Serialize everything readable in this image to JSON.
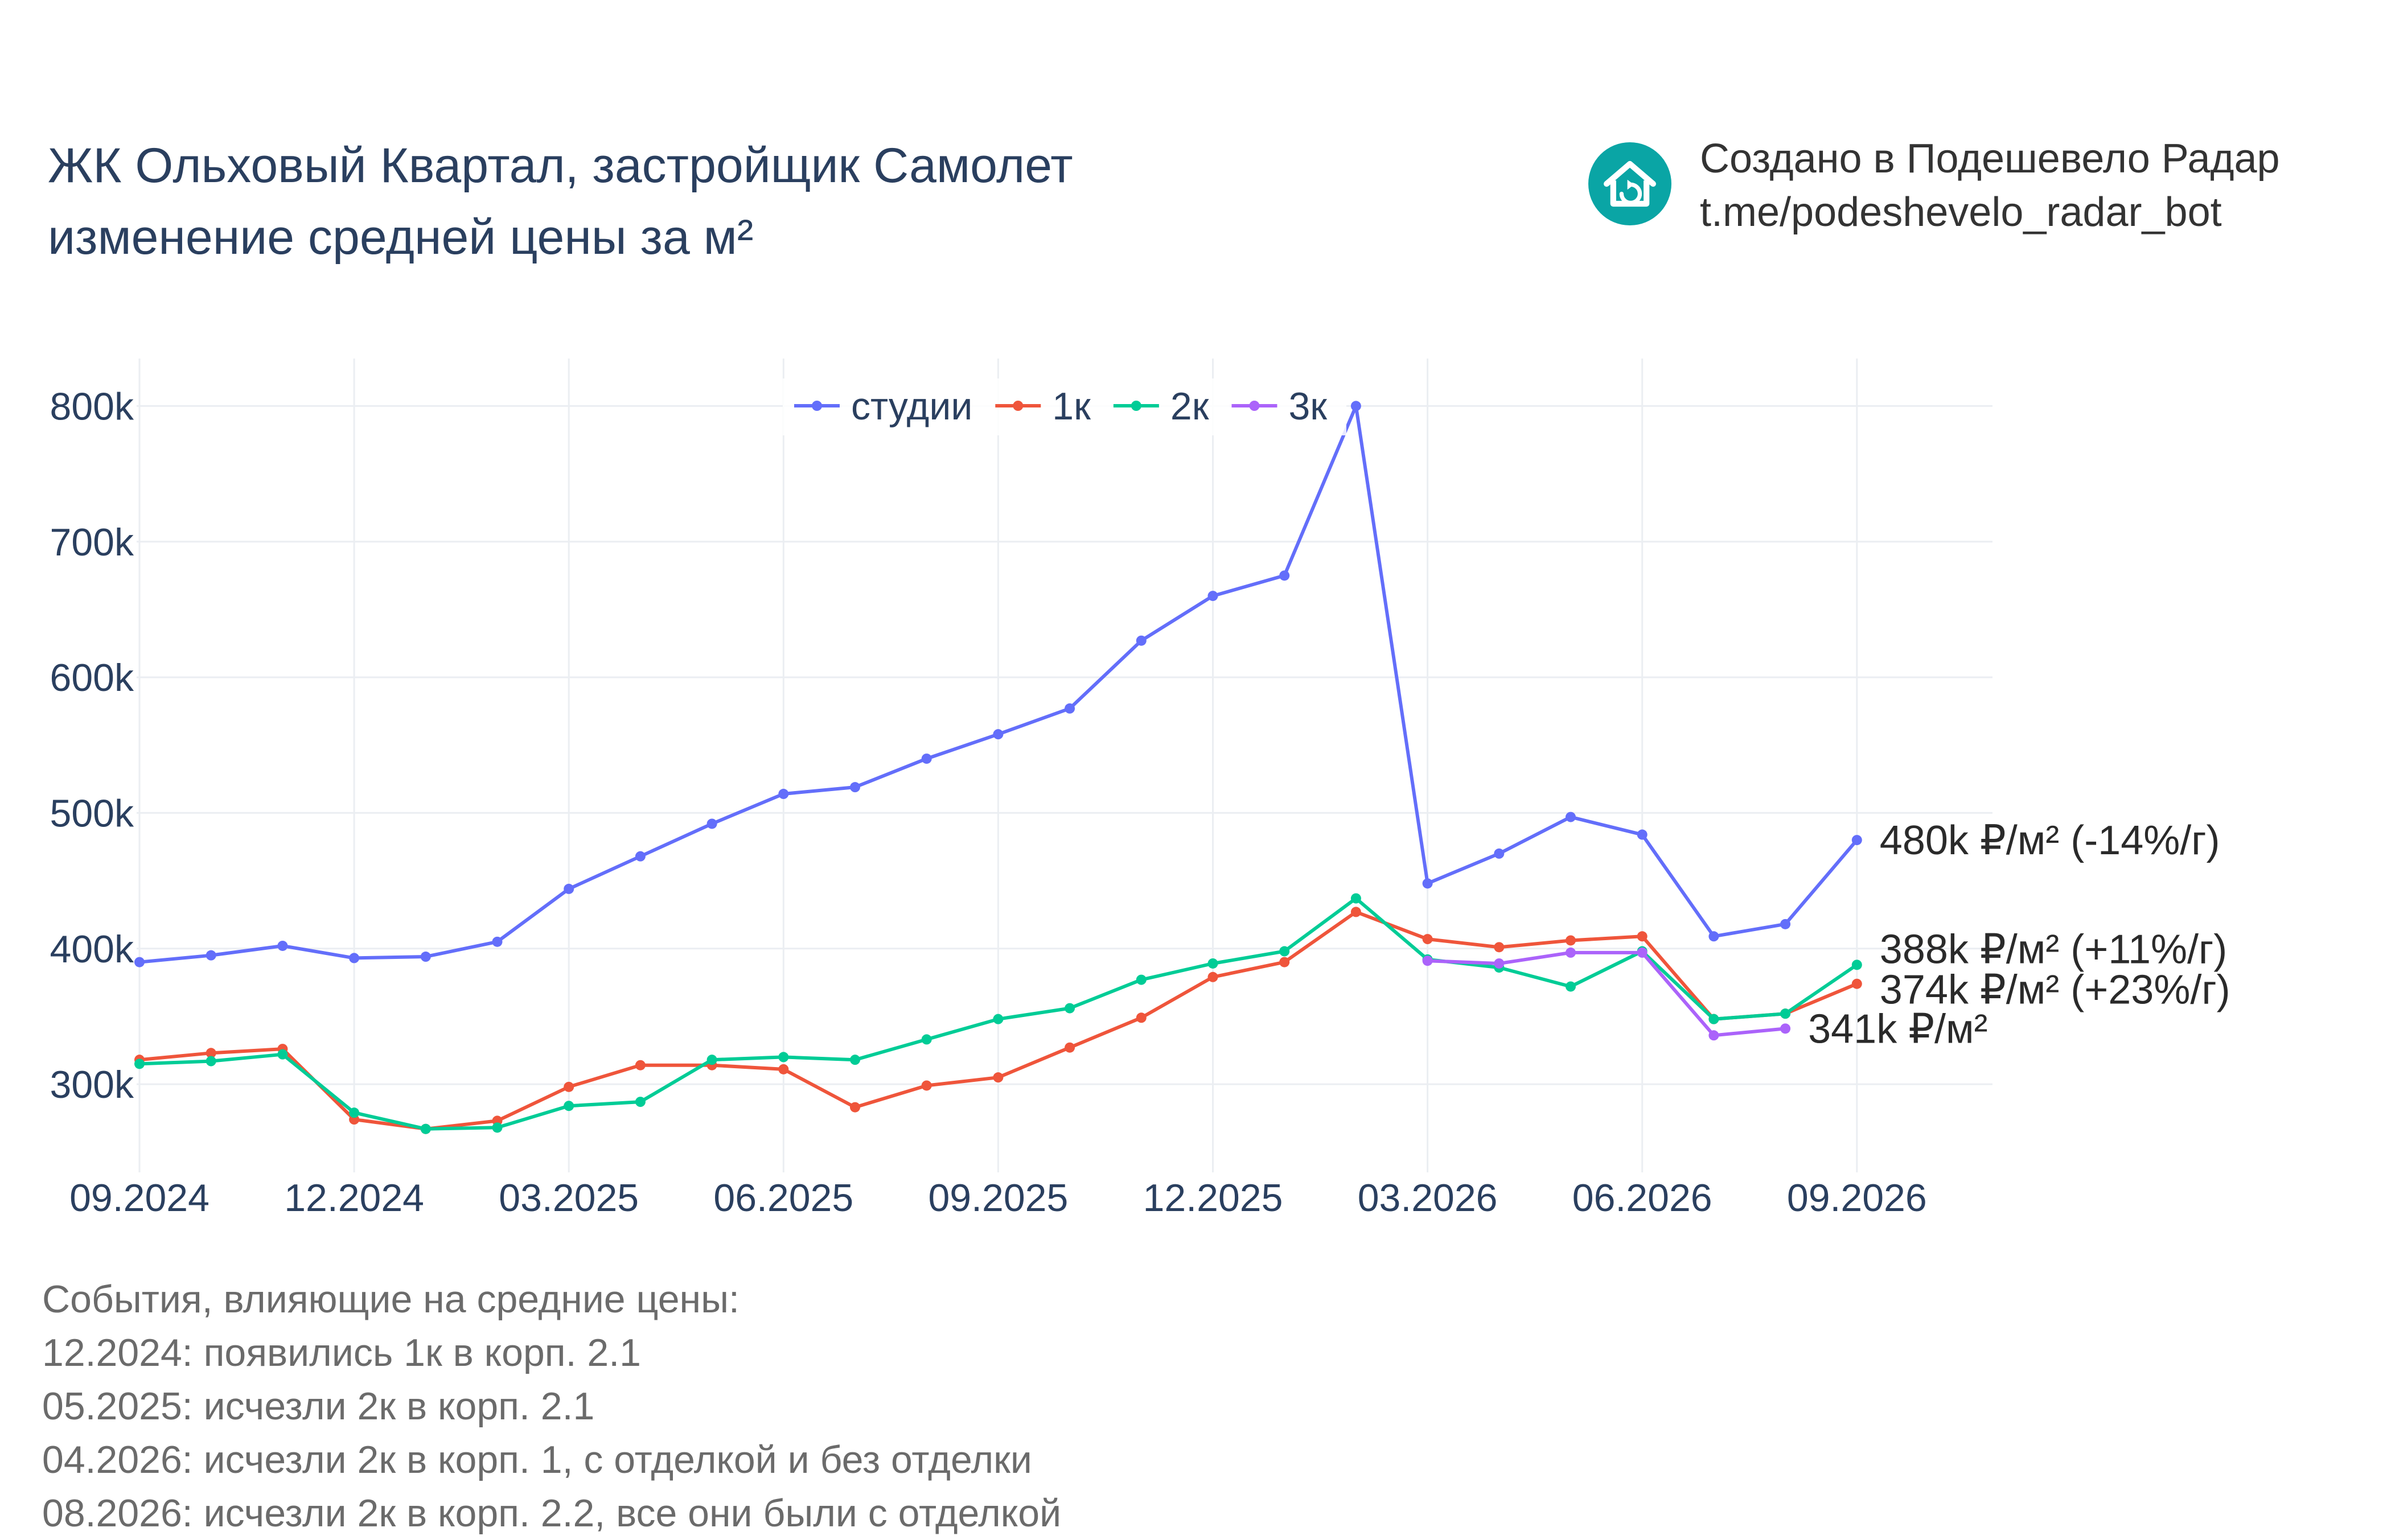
{
  "header": {
    "title_line1": "ЖК Ольховый Квартал, застройщик Самолет",
    "title_line2": "изменение средней цены за м²"
  },
  "brand": {
    "line1": "Создано в Подешевело Радар",
    "line2": "t.me/podeshevelo_radar_bot",
    "logo_icon": "house-refresh-icon",
    "logo_color": "#0aa5a5"
  },
  "events": {
    "heading": "События, влияющие на средние цены:",
    "items": [
      "12.2024: появились 1к в корп. 2.1",
      "05.2025: исчезли 2к в корп. 2.1",
      "04.2026: исчезли 2к в корп. 1, с отделкой и без отделки",
      "08.2026: исчезли 2к в корп. 2.2, все они были с отделкой"
    ]
  },
  "chart_data": {
    "type": "line",
    "x": [
      "09.2024",
      "10.2024",
      "11.2024",
      "12.2024",
      "01.2025",
      "02.2025",
      "03.2025",
      "04.2025",
      "05.2025",
      "06.2025",
      "07.2025",
      "08.2025",
      "09.2025",
      "10.2025",
      "11.2025",
      "12.2025",
      "01.2026",
      "02.2026",
      "03.2026",
      "04.2026",
      "05.2026",
      "06.2026",
      "07.2026",
      "08.2026",
      "09.2026"
    ],
    "xticks": [
      "09.2024",
      "12.2024",
      "03.2025",
      "06.2025",
      "09.2025",
      "12.2025",
      "03.2026",
      "06.2026",
      "09.2026"
    ],
    "yticks": [
      300000,
      400000,
      500000,
      600000,
      700000,
      800000
    ],
    "ytick_labels": [
      "300k",
      "400k",
      "500k",
      "600k",
      "700k",
      "800k"
    ],
    "ylim": [
      235000,
      835000
    ],
    "grid": true,
    "legend_position": "top-center",
    "series": [
      {
        "name": "студии",
        "color": "#636efa",
        "values": [
          390000,
          395000,
          402000,
          393000,
          394000,
          405000,
          444000,
          468000,
          492000,
          514000,
          519000,
          540000,
          558000,
          577000,
          627000,
          660000,
          675000,
          800000,
          448000,
          470000,
          497000,
          484000,
          409000,
          418000,
          480000
        ],
        "end_label": "480k ₽/м² (-14%/г)"
      },
      {
        "name": "1к",
        "color": "#ef553b",
        "values": [
          318000,
          323000,
          326000,
          274000,
          267000,
          273000,
          298000,
          314000,
          314000,
          311000,
          283000,
          299000,
          305000,
          327000,
          349000,
          379000,
          390000,
          427000,
          407000,
          401000,
          406000,
          409000,
          348000,
          352000,
          374000
        ],
        "end_label": "374k ₽/м² (+23%/г)"
      },
      {
        "name": "2к",
        "color": "#00cc96",
        "values": [
          315000,
          317000,
          322000,
          279000,
          267000,
          268000,
          284000,
          287000,
          318000,
          320000,
          318000,
          333000,
          348000,
          356000,
          377000,
          389000,
          398000,
          437000,
          392000,
          386000,
          372000,
          398000,
          348000,
          352000,
          388000
        ],
        "end_label": "388k ₽/м² (+11%/г)"
      },
      {
        "name": "3к",
        "color": "#ab63fa",
        "values": [
          null,
          null,
          null,
          null,
          null,
          null,
          null,
          null,
          null,
          null,
          null,
          null,
          null,
          null,
          null,
          null,
          null,
          null,
          391000,
          389000,
          397000,
          397000,
          336000,
          341000,
          null
        ],
        "end_label": "341k ₽/м²"
      }
    ]
  }
}
